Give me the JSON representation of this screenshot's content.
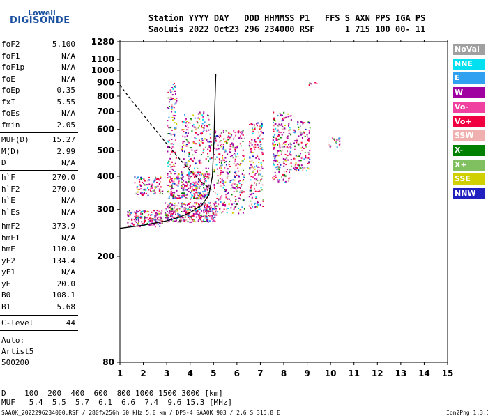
{
  "logo": {
    "top": "Lowell",
    "main": "DIGISONDE"
  },
  "header": {
    "line1": "Station YYYY DAY   DDD HHMMSS P1   FFS S AXN PPS IGA PS",
    "line2": "SaoLuis 2022 Oct23 296 234000 RSF      1 715 100 00- 11"
  },
  "params_group1": [
    {
      "name": "foF2",
      "value": "5.100"
    },
    {
      "name": "foF1",
      "value": "N/A"
    },
    {
      "name": "foF1p",
      "value": "N/A"
    },
    {
      "name": "foE",
      "value": "N/A"
    },
    {
      "name": "foEp",
      "value": "0.35"
    },
    {
      "name": "fxI",
      "value": "5.55"
    },
    {
      "name": "foEs",
      "value": "N/A"
    },
    {
      "name": "fmin",
      "value": "2.05"
    }
  ],
  "params_group2": [
    {
      "name": "MUF(D)",
      "value": "15.27"
    },
    {
      "name": "M(D)",
      "value": "2.99"
    },
    {
      "name": "D",
      "value": "N/A"
    }
  ],
  "params_group3": [
    {
      "name": "h`F",
      "value": "270.0"
    },
    {
      "name": "h`F2",
      "value": "270.0"
    },
    {
      "name": "h`E",
      "value": "N/A"
    },
    {
      "name": "h`Es",
      "value": "N/A"
    }
  ],
  "params_group4": [
    {
      "name": "hmF2",
      "value": "373.9"
    },
    {
      "name": "hmF1",
      "value": "N/A"
    },
    {
      "name": "hmE",
      "value": "110.0"
    },
    {
      "name": "yF2",
      "value": "134.4"
    },
    {
      "name": "yF1",
      "value": "N/A"
    },
    {
      "name": "yE",
      "value": "20.0"
    },
    {
      "name": "B0",
      "value": "108.1"
    },
    {
      "name": "B1",
      "value": "5.68"
    }
  ],
  "params_group5": [
    {
      "name": "C-level",
      "value": "44"
    }
  ],
  "auto": {
    "line1": "Auto:",
    "line2": "Artist5",
    "line3": "500200"
  },
  "legend": [
    {
      "label": "NoVal",
      "color": "#a0a0a0"
    },
    {
      "label": "NNE",
      "color": "#00e0f0"
    },
    {
      "label": "E",
      "color": "#30a0f0"
    },
    {
      "label": "W",
      "color": "#a000a0"
    },
    {
      "label": "Vo-",
      "color": "#f040a0"
    },
    {
      "label": "Vo+",
      "color": "#f00040"
    },
    {
      "label": "SSW",
      "color": "#f0b0b0"
    },
    {
      "label": "X-",
      "color": "#008000"
    },
    {
      "label": "X+",
      "color": "#80c060"
    },
    {
      "label": "SSE",
      "color": "#d0d000"
    },
    {
      "label": "NNW",
      "color": "#2020c0"
    }
  ],
  "bottom": {
    "d_line": "D    100  200  400  600  800 1000 1500 3000 [km]",
    "muf_line": "MUF   5.4  5.5  5.7  6.1  6.6  7.4  9.6 15.3 [MHz]"
  },
  "footer": {
    "left": "SAA0K_2022296234000.RSF / 280fx256h 50 kHz 5.0 km / DPS-4 SAA0K 903 / 2.6 S 315.8 E",
    "right": "Ion2Png 1.3.17"
  },
  "chart_data": {
    "type": "scatter",
    "title": "",
    "xlabel": "",
    "ylabel": "",
    "xlim": [
      1,
      15
    ],
    "ylim": [
      80,
      1280
    ],
    "y_scale": "log",
    "x_ticks": [
      1,
      2,
      3,
      4,
      5,
      6,
      7,
      8,
      9,
      10,
      11,
      12,
      13,
      14,
      15
    ],
    "x_tick_labels": [
      "1",
      "2",
      "3",
      "4",
      "5",
      "6",
      "7",
      "8",
      "9",
      "10",
      "11",
      "12",
      "13",
      "14",
      "15"
    ],
    "y_ticks": [
      80,
      200,
      300,
      400,
      500,
      600,
      700,
      800,
      900,
      1000,
      1100,
      1280
    ],
    "y_tick_labels": [
      "80",
      "200",
      "300",
      "400",
      "500",
      "600",
      "700",
      "800",
      "900",
      "1000",
      "1100",
      "1280"
    ],
    "trace_series": [
      {
        "name": "F2 trace (solid)",
        "style": "solid",
        "points": [
          [
            1,
            255
          ],
          [
            2,
            262
          ],
          [
            3,
            272
          ],
          [
            3.5,
            280
          ],
          [
            4,
            292
          ],
          [
            4.5,
            312
          ],
          [
            4.8,
            340
          ],
          [
            4.95,
            400
          ],
          [
            5.02,
            550
          ],
          [
            5.06,
            750
          ],
          [
            5.1,
            970
          ]
        ]
      },
      {
        "name": "Profile (dashed)",
        "style": "dashed",
        "points": [
          [
            1,
            880
          ],
          [
            1.5,
            770
          ],
          [
            2,
            680
          ],
          [
            2.5,
            600
          ],
          [
            3,
            530
          ],
          [
            3.5,
            470
          ],
          [
            4,
            420
          ],
          [
            4.5,
            380
          ],
          [
            5,
            350
          ]
        ]
      }
    ],
    "echo_clusters": [
      {
        "x": [
          1.3,
          2.8
        ],
        "y": [
          260,
          300
        ],
        "density": 0.9
      },
      {
        "x": [
          1.6,
          2.8
        ],
        "y": [
          340,
          400
        ],
        "density": 0.5
      },
      {
        "x": [
          2.9,
          5.1
        ],
        "y": [
          270,
          320
        ],
        "density": 1.0
      },
      {
        "x": [
          3.0,
          4.8
        ],
        "y": [
          330,
          420
        ],
        "density": 0.8
      },
      {
        "x": [
          3.0,
          3.4
        ],
        "y": [
          420,
          900
        ],
        "density": 0.35
      },
      {
        "x": [
          3.6,
          4.9
        ],
        "y": [
          430,
          700
        ],
        "density": 0.3
      },
      {
        "x": [
          5.0,
          6.3
        ],
        "y": [
          290,
          600
        ],
        "density": 0.35
      },
      {
        "x": [
          6.5,
          7.1
        ],
        "y": [
          300,
          650
        ],
        "density": 0.4
      },
      {
        "x": [
          7.5,
          8.3
        ],
        "y": [
          380,
          700
        ],
        "density": 0.45
      },
      {
        "x": [
          8.4,
          9.1
        ],
        "y": [
          420,
          650
        ],
        "density": 0.4
      },
      {
        "x": [
          9.0,
          9.4
        ],
        "y": [
          880,
          910
        ],
        "density": 0.5
      },
      {
        "x": [
          9.8,
          10.4
        ],
        "y": [
          500,
          560
        ],
        "density": 0.3
      }
    ]
  }
}
